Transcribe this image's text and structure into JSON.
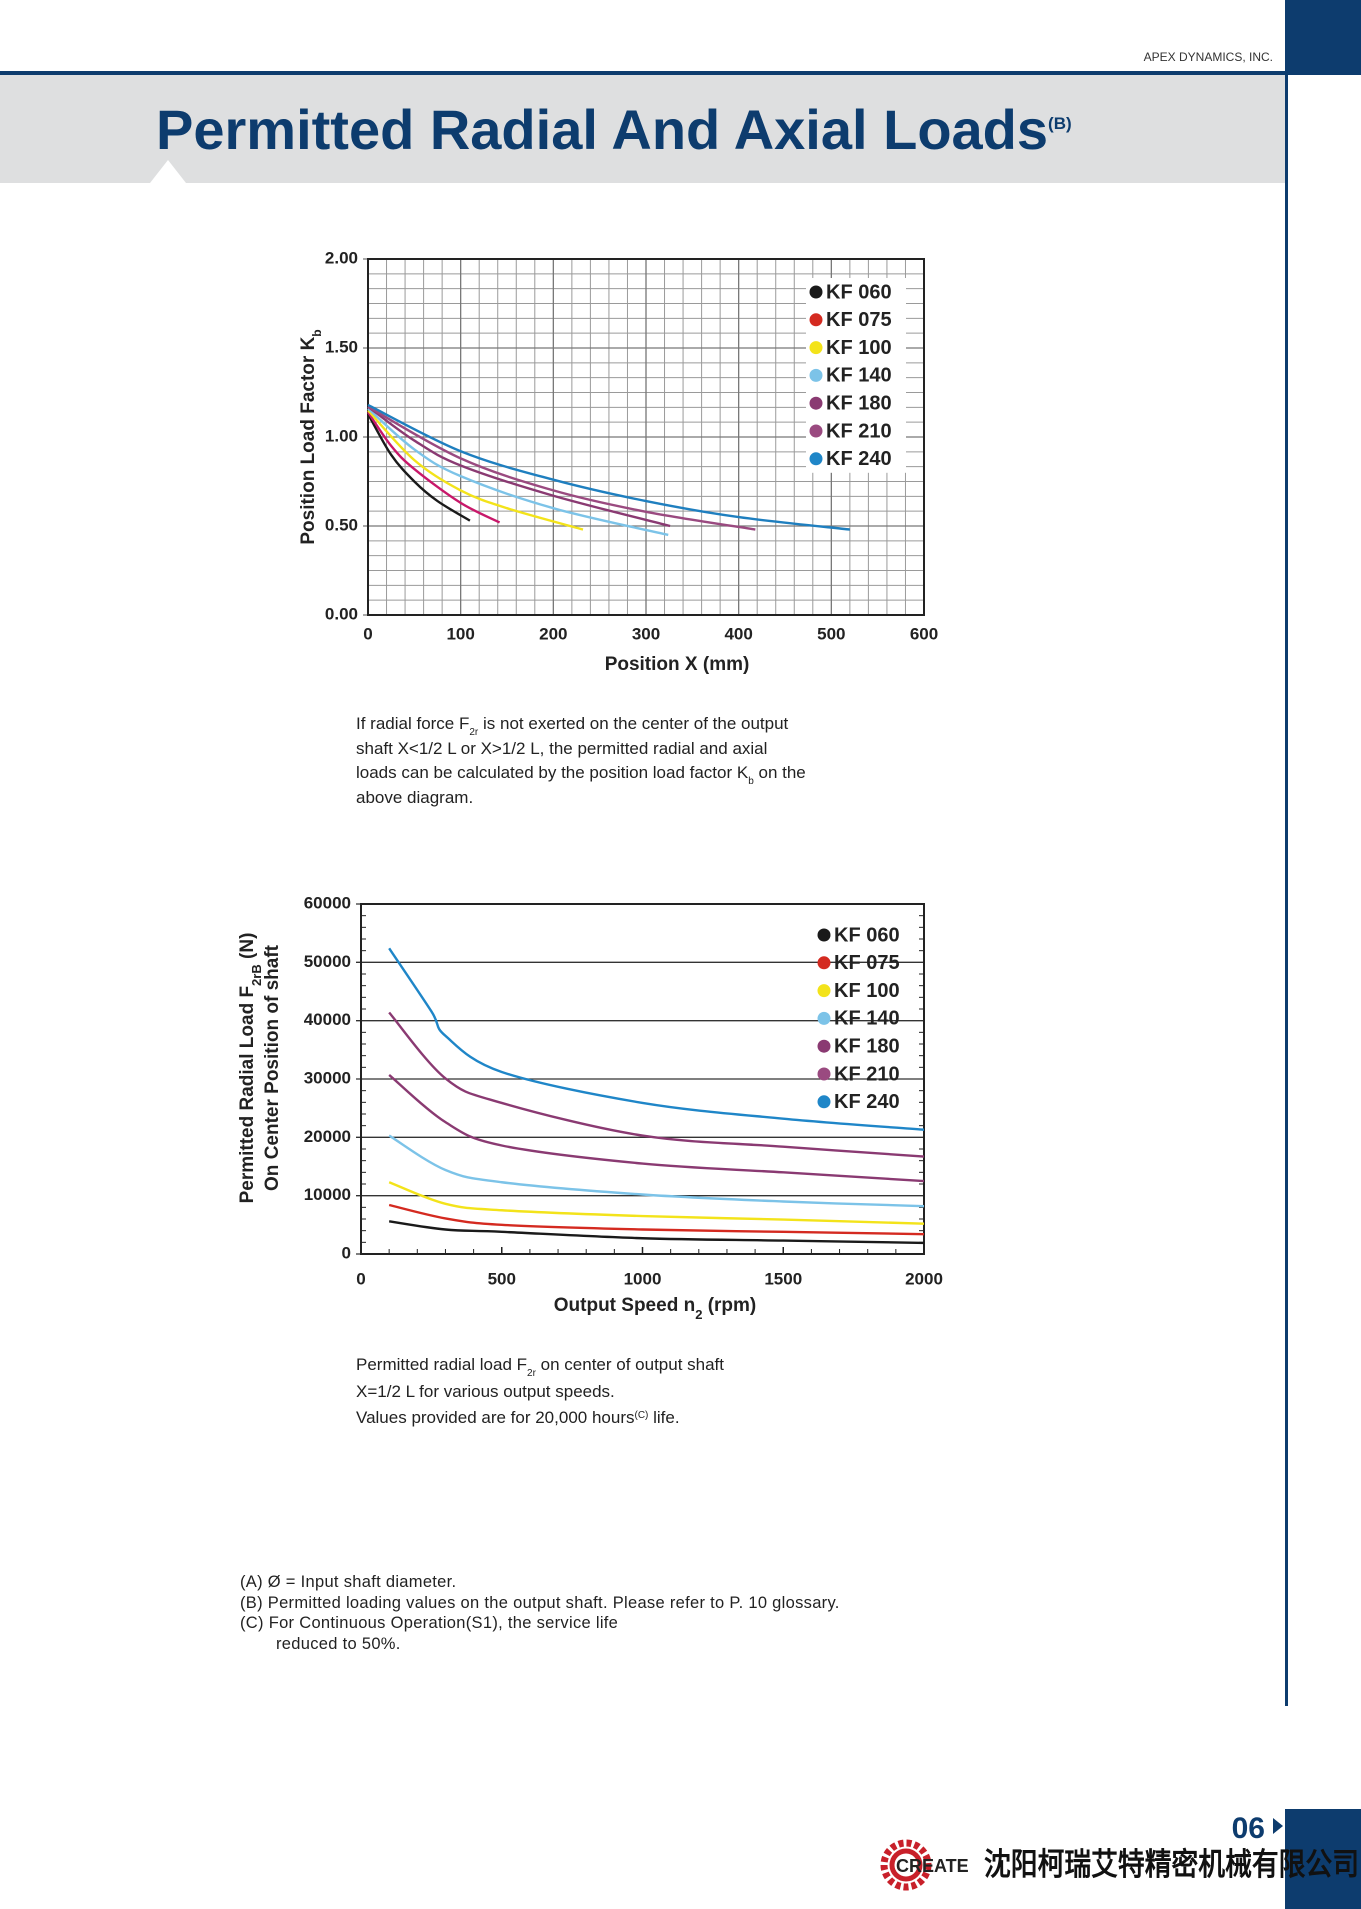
{
  "header": {
    "company": "APEX DYNAMICS, INC.",
    "title": "Permitted Radial And Axial Loads",
    "title_sup": "(B)"
  },
  "chart_data": [
    {
      "type": "line",
      "xlim": [
        0,
        600
      ],
      "ylim": [
        0,
        2
      ],
      "xticks": [
        0,
        100,
        200,
        300,
        400,
        500,
        600
      ],
      "yticks": [
        {
          "value": 0,
          "label": "0.00"
        },
        {
          "value": 0.5,
          "label": "0.50"
        },
        {
          "value": 1,
          "label": "1.00"
        },
        {
          "value": 1.5,
          "label": "1.50"
        },
        {
          "value": 2,
          "label": "2.00"
        }
      ],
      "grid": true,
      "legend": "upper right",
      "series": [
        {
          "name": "KF 060",
          "color": "#1a1a1a",
          "legend_color": "#1a1a1a",
          "x": [
            0,
            25,
            50,
            75,
            110
          ],
          "values": [
            1.13,
            0.9,
            0.75,
            0.64,
            0.53
          ]
        },
        {
          "name": "KF 075",
          "color": "#c8186a",
          "legend_color": "#d42a20",
          "x": [
            0,
            25,
            50,
            100,
            142
          ],
          "values": [
            1.14,
            0.95,
            0.82,
            0.63,
            0.52
          ]
        },
        {
          "name": "KF 100",
          "color": "#f3e31a",
          "legend_color": "#f3e31a",
          "x": [
            0,
            50,
            100,
            150,
            232
          ],
          "values": [
            1.15,
            0.87,
            0.7,
            0.6,
            0.48
          ]
        },
        {
          "name": "KF 140",
          "color": "#7cc3e8",
          "legend_color": "#7cc3e8",
          "x": [
            0,
            50,
            100,
            200,
            324
          ],
          "values": [
            1.16,
            0.93,
            0.78,
            0.6,
            0.45
          ]
        },
        {
          "name": "KF 180",
          "color": "#8a3a72",
          "legend_color": "#8a3a72",
          "x": [
            0,
            50,
            100,
            200,
            326
          ],
          "values": [
            1.17,
            0.98,
            0.84,
            0.67,
            0.5
          ]
        },
        {
          "name": "KF 210",
          "color": "#9a4a80",
          "legend_color": "#9a4a80",
          "x": [
            0,
            100,
            200,
            300,
            418
          ],
          "values": [
            1.17,
            0.88,
            0.7,
            0.58,
            0.48
          ]
        },
        {
          "name": "KF 240",
          "color": "#1f7fbf",
          "legend_color": "#1f86c8",
          "x": [
            0,
            100,
            200,
            300,
            400,
            520
          ],
          "values": [
            1.18,
            0.92,
            0.76,
            0.64,
            0.55,
            0.48
          ]
        }
      ]
    },
    {
      "type": "line",
      "xlim": [
        0,
        2000
      ],
      "ylim": [
        0,
        60000
      ],
      "xticks": [
        0,
        500,
        1000,
        1500,
        2000
      ],
      "yticks": [
        0,
        10000,
        20000,
        30000,
        40000,
        50000,
        60000
      ],
      "grid": true,
      "legend": "upper right",
      "series": [
        {
          "name": "KF 060",
          "color": "#1a1a1a",
          "legend_color": "#1a1a1a",
          "x": [
            100,
            300,
            500,
            1000,
            1500,
            2000
          ],
          "values": [
            5600,
            4200,
            3800,
            2700,
            2300,
            1900
          ]
        },
        {
          "name": "KF 075",
          "color": "#d42a20",
          "legend_color": "#d42a20",
          "x": [
            100,
            300,
            500,
            1000,
            1500,
            2000
          ],
          "values": [
            8400,
            6100,
            5000,
            4200,
            3800,
            3400
          ]
        },
        {
          "name": "KF 100",
          "color": "#f3e31a",
          "legend_color": "#f3e31a",
          "x": [
            100,
            300,
            500,
            1000,
            1500,
            2000
          ],
          "values": [
            12300,
            8600,
            7500,
            6500,
            5900,
            5200
          ]
        },
        {
          "name": "KF 140",
          "color": "#7cc3e8",
          "legend_color": "#7cc3e8",
          "x": [
            100,
            300,
            500,
            1000,
            1500,
            2000
          ],
          "values": [
            20300,
            14400,
            12300,
            10200,
            9000,
            8200
          ]
        },
        {
          "name": "KF 180",
          "color": "#8a3a72",
          "legend_color": "#8a3a72",
          "x": [
            100,
            300,
            500,
            1000,
            1500,
            2000
          ],
          "values": [
            30700,
            22600,
            18600,
            15500,
            14000,
            12500
          ]
        },
        {
          "name": "KF 210",
          "color": "#8a3a72",
          "legend_color": "#9a4a80",
          "x": [
            100,
            300,
            500,
            1000,
            1500,
            2000
          ],
          "values": [
            41400,
            30100,
            25900,
            20300,
            18400,
            16700
          ]
        },
        {
          "name": "KF 240",
          "color": "#1f86c8",
          "legend_color": "#1f86c8",
          "x": [
            100,
            250,
            300,
            500,
            1000,
            1500,
            2000
          ],
          "values": [
            52400,
            41600,
            37400,
            31200,
            25900,
            23200,
            21300
          ]
        }
      ]
    }
  ],
  "axis_labels": [
    {
      "y": [
        "Position Load Factor K",
        "b"
      ],
      "x": [
        "Position X (mm)"
      ]
    },
    {
      "y": [
        "Permitted Radial Load F",
        "2rB",
        " (N)"
      ],
      "y2": [
        "On Center Position of shaft"
      ],
      "x": [
        "Output Speed n",
        "2",
        "  (rpm)"
      ]
    }
  ],
  "captions": [
    [
      [
        "If radial force F",
        "2r",
        " is not exerted on the center of the  output"
      ],
      [
        "shaft X<1/2 L or X>1/2 L, the permitted radial and axial"
      ],
      [
        "loads can be calculated by the position load factor K",
        "b",
        " on the"
      ],
      [
        "above diagram."
      ]
    ],
    [
      [
        "Permitted radial load F",
        "2r",
        " on center of output shaft"
      ],
      [
        "X=1/2 L for various output speeds."
      ],
      [
        "Values provided are for 20,000 hours",
        "(C)",
        " life."
      ]
    ]
  ],
  "footnotes": [
    "(A)  Ø = Input shaft diameter.",
    "(B)  Permitted loading values on the output shaft. Please refer to P. 10 glossary.",
    "(C)  For Continuous Operation(S1), the service life",
    "reduced to 50%."
  ],
  "footer": {
    "page": "06",
    "logo": "CREATE",
    "company_cn": "沈阳柯瑞艾特精密机械有限公司"
  }
}
